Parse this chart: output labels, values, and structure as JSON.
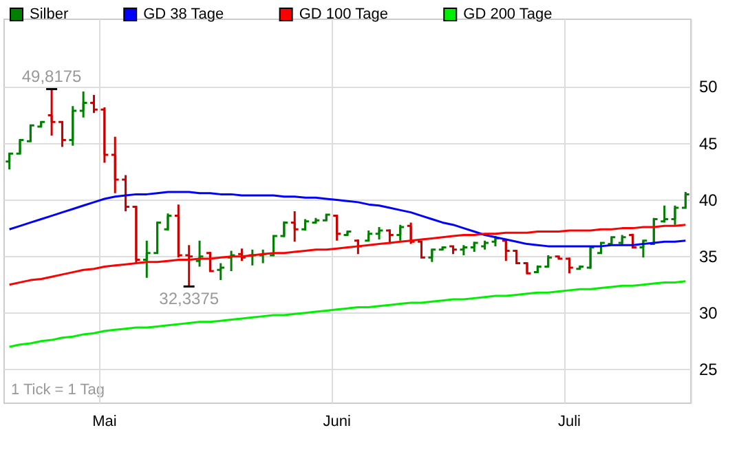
{
  "chart_data": {
    "type": "candlestick",
    "categories": [
      null,
      null,
      null,
      null,
      null,
      null,
      null,
      null,
      null,
      "Mai",
      null,
      null,
      null,
      null,
      null,
      null,
      null,
      null,
      null,
      null,
      null,
      null,
      null,
      null,
      null,
      null,
      null,
      null,
      null,
      null,
      null,
      "Juni",
      null,
      null,
      null,
      null,
      null,
      null,
      null,
      null,
      null,
      null,
      null,
      null,
      null,
      null,
      null,
      null,
      null,
      null,
      null,
      null,
      null,
      "Juli",
      null,
      null,
      null,
      null,
      null,
      null,
      null,
      null,
      null,
      null,
      null
    ],
    "series": [
      {
        "name": "Silber",
        "color": "#008000",
        "colors": [
          "#008000",
          "#008000",
          "#008000",
          "#008000",
          "#cc0000",
          "#cc0000",
          "#008000",
          "#008000",
          "#cc0000",
          "#cc0000",
          "#cc0000",
          "#cc0000",
          "#cc0000",
          "#008000",
          "#008000",
          "#008000",
          "#cc0000",
          "#cc0000",
          "#008000",
          "#cc0000",
          "#008000",
          "#008000",
          "#cc0000",
          "#008000",
          "#008000",
          "#008000",
          "#008000",
          "#cc0000",
          "#008000",
          "#008000",
          "#008000",
          "#cc0000",
          "#008000",
          "#cc0000",
          "#008000",
          "#008000",
          "#cc0000",
          "#008000",
          "#cc0000",
          "#cc0000",
          "#008000",
          "#008000",
          "#cc0000",
          "#008000",
          "#008000",
          "#008000",
          "#008000",
          "#cc0000",
          "#cc0000",
          "#cc0000",
          "#008000",
          "#008000",
          "#cc0000",
          "#cc0000",
          "#008000",
          "#008000",
          "#008000",
          "#008000",
          "#008000",
          "#cc0000",
          "#008000",
          "#008000",
          "#008000",
          "#008000",
          "#008000"
        ],
        "ohlc": [
          [
            43.4,
            44.1,
            42.7,
            44.1
          ],
          [
            44.1,
            45.3,
            44.1,
            45.3
          ],
          [
            45.2,
            46.6,
            45.2,
            46.6
          ],
          [
            46.5,
            47.0,
            46.5,
            46.9
          ],
          [
            47.5,
            49.8175,
            45.7,
            46.9
          ],
          [
            46.9,
            46.9,
            44.7,
            45.3
          ],
          [
            45.3,
            48.3,
            44.8,
            47.9
          ],
          [
            47.9,
            49.6,
            47.3,
            48.6
          ],
          [
            48.6,
            49.3,
            47.7,
            48.0
          ],
          [
            48.0,
            48.2,
            43.3,
            44.0
          ],
          [
            44.0,
            45.6,
            40.6,
            41.8
          ],
          [
            41.8,
            42.2,
            39.0,
            39.4
          ],
          [
            39.4,
            39.4,
            34.4,
            34.7
          ],
          [
            34.7,
            36.4,
            33.1,
            35.3
          ],
          [
            35.3,
            38.0,
            35.3,
            38.0
          ],
          [
            37.4,
            38.8,
            37.3,
            38.6
          ],
          [
            38.6,
            39.6,
            34.9,
            35.1
          ],
          [
            35.1,
            36.0,
            32.3375,
            35.0
          ],
          [
            34.6,
            36.4,
            34.1,
            35.0
          ],
          [
            35.3,
            35.4,
            33.7,
            33.7
          ],
          [
            33.8,
            34.4,
            32.9,
            34.0
          ],
          [
            34.9,
            35.5,
            33.7,
            35.1
          ],
          [
            35.2,
            35.7,
            34.6,
            34.9
          ],
          [
            35.1,
            35.6,
            34.2,
            35.1
          ],
          [
            35.1,
            35.6,
            34.4,
            35.2
          ],
          [
            35.1,
            36.8,
            35.1,
            36.8
          ],
          [
            36.8,
            38.1,
            36.7,
            38.0
          ],
          [
            38.0,
            39.0,
            36.3,
            37.4
          ],
          [
            37.4,
            38.3,
            37.3,
            38.1
          ],
          [
            38.0,
            38.4,
            37.9,
            38.2
          ],
          [
            38.2,
            38.7,
            38.2,
            38.7
          ],
          [
            38.6,
            38.6,
            36.4,
            37.0
          ],
          [
            36.9,
            37.2,
            36.9,
            37.2
          ],
          [
            36.4,
            36.5,
            35.2,
            35.9
          ],
          [
            36.4,
            37.3,
            36.3,
            37.0
          ],
          [
            37.0,
            37.6,
            36.5,
            37.3
          ],
          [
            37.3,
            37.4,
            36.1,
            36.9
          ],
          [
            36.9,
            37.8,
            36.4,
            37.6
          ],
          [
            37.7,
            38.0,
            36.1,
            36.3
          ],
          [
            36.3,
            36.3,
            34.9,
            34.9
          ],
          [
            34.9,
            35.6,
            34.5,
            35.6
          ],
          [
            35.6,
            35.8,
            35.6,
            35.8
          ],
          [
            35.9,
            35.9,
            35.2,
            35.6
          ],
          [
            35.6,
            36.0,
            35.1,
            35.8
          ],
          [
            35.8,
            36.3,
            35.4,
            36.2
          ],
          [
            35.9,
            36.4,
            35.6,
            36.2
          ],
          [
            36.3,
            36.8,
            35.9,
            36.6
          ],
          [
            36.4,
            36.4,
            34.6,
            35.5
          ],
          [
            35.5,
            35.5,
            34.4,
            34.4
          ],
          [
            34.4,
            34.4,
            33.5,
            33.5
          ],
          [
            33.6,
            34.2,
            33.6,
            34.1
          ],
          [
            34.1,
            35.1,
            34.0,
            34.9
          ],
          [
            35.0,
            35.0,
            34.8,
            34.8
          ],
          [
            34.8,
            34.9,
            33.5,
            34.0
          ],
          [
            33.9,
            34.2,
            33.9,
            34.1
          ],
          [
            34.0,
            35.8,
            33.9,
            35.8
          ],
          [
            35.3,
            36.2,
            35.3,
            36.2
          ],
          [
            36.1,
            36.7,
            36.0,
            36.7
          ],
          [
            36.2,
            36.9,
            36.0,
            36.7
          ],
          [
            36.9,
            37.0,
            35.8,
            35.8
          ],
          [
            35.8,
            36.4,
            34.9,
            36.4
          ],
          [
            36.1,
            38.4,
            36.1,
            38.3
          ],
          [
            38.1,
            39.5,
            38.0,
            38.3
          ],
          [
            38.3,
            39.5,
            37.8,
            39.3
          ],
          [
            39.3,
            40.7,
            39.3,
            40.5
          ]
        ]
      },
      {
        "name": "GD 38 Tage",
        "type": "line",
        "color": "#0000ff",
        "values": [
          37.4,
          37.7,
          38.0,
          38.3,
          38.6,
          38.9,
          39.2,
          39.5,
          39.8,
          40.1,
          40.3,
          40.4,
          40.5,
          40.5,
          40.6,
          40.7,
          40.7,
          40.7,
          40.6,
          40.6,
          40.5,
          40.5,
          40.4,
          40.4,
          40.4,
          40.4,
          40.3,
          40.3,
          40.2,
          40.2,
          40.1,
          40.0,
          39.9,
          39.8,
          39.6,
          39.5,
          39.3,
          39.1,
          38.9,
          38.6,
          38.3,
          38.0,
          37.8,
          37.5,
          37.2,
          36.9,
          36.7,
          36.5,
          36.3,
          36.1,
          36.0,
          35.9,
          35.9,
          35.9,
          35.9,
          35.9,
          35.9,
          36.0,
          36.0,
          36.0,
          36.1,
          36.2,
          36.3,
          36.3,
          36.4
        ]
      },
      {
        "name": "GD 100 Tage",
        "type": "line",
        "color": "#ff0000",
        "values": [
          32.5,
          32.7,
          32.9,
          33.0,
          33.2,
          33.4,
          33.6,
          33.8,
          33.9,
          34.1,
          34.2,
          34.3,
          34.4,
          34.5,
          34.5,
          34.6,
          34.7,
          34.7,
          34.8,
          34.8,
          34.9,
          35.0,
          35.0,
          35.1,
          35.2,
          35.3,
          35.3,
          35.4,
          35.5,
          35.6,
          35.6,
          35.7,
          35.8,
          35.9,
          36.0,
          36.1,
          36.2,
          36.3,
          36.4,
          36.5,
          36.6,
          36.7,
          36.8,
          36.9,
          36.9,
          37.0,
          37.0,
          37.1,
          37.1,
          37.1,
          37.2,
          37.2,
          37.2,
          37.3,
          37.3,
          37.3,
          37.4,
          37.4,
          37.5,
          37.5,
          37.6,
          37.6,
          37.7,
          37.7,
          37.8
        ]
      },
      {
        "name": "GD 200 Tage",
        "type": "line",
        "color": "#00ee00",
        "values": [
          27.0,
          27.2,
          27.3,
          27.5,
          27.6,
          27.8,
          27.9,
          28.1,
          28.2,
          28.4,
          28.5,
          28.6,
          28.7,
          28.7,
          28.8,
          28.9,
          29.0,
          29.1,
          29.2,
          29.2,
          29.3,
          29.4,
          29.5,
          29.6,
          29.7,
          29.8,
          29.8,
          29.9,
          30.0,
          30.1,
          30.2,
          30.3,
          30.4,
          30.5,
          30.5,
          30.6,
          30.7,
          30.8,
          30.9,
          30.9,
          31.0,
          31.1,
          31.2,
          31.2,
          31.3,
          31.4,
          31.5,
          31.5,
          31.6,
          31.7,
          31.8,
          31.8,
          31.9,
          32.0,
          32.1,
          32.1,
          32.2,
          32.3,
          32.4,
          32.4,
          32.5,
          32.6,
          32.7,
          32.7,
          32.8
        ]
      }
    ],
    "ylim": [
      22,
      56
    ],
    "yticks": [
      25,
      30,
      35,
      40,
      45,
      50
    ],
    "grid": true,
    "legend": "top left",
    "marker": "none",
    "annotations": [
      {
        "text": "49,8175",
        "y": 49.8175
      },
      {
        "text": "32,3375",
        "y": 32.3375
      },
      "1 Tick = 1 Tag"
    ]
  }
}
